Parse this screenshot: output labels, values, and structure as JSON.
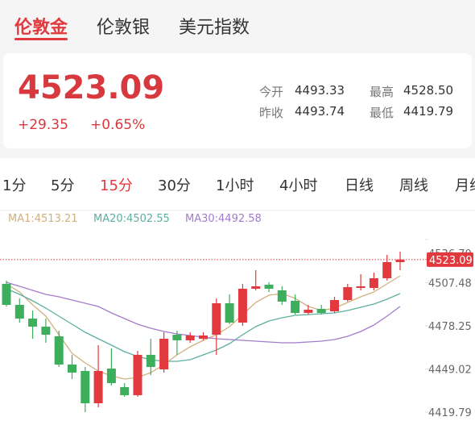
{
  "tabs": [
    "伦敦金",
    "伦敦银",
    "美元指数"
  ],
  "quote": {
    "price": "4523.09",
    "change": "+29.35",
    "change_pct": "+0.65%",
    "stats": [
      {
        "label": "今开",
        "value": "4493.33"
      },
      {
        "label": "最高",
        "value": "4528.50"
      },
      {
        "label": "昨收",
        "value": "4493.74"
      },
      {
        "label": "最低",
        "value": "4419.79"
      }
    ]
  },
  "periods": [
    "1分",
    "5分",
    "15分",
    "30分",
    "1小时",
    "4小时",
    "日线",
    "周线",
    "月线"
  ],
  "chart_data": {
    "type": "candlestick",
    "up_color": "#e2393f",
    "down_color": "#3daf5c",
    "ma_legend": [
      {
        "text": "MA1:4513.21",
        "color": "#d2b07e"
      },
      {
        "text": "MA20:4502.55",
        "color": "#5cb0a0"
      },
      {
        "text": "MA30:4492.58",
        "color": "#a47ccb"
      }
    ],
    "open": [
      4506.65,
      4492.45,
      4483.16,
      4477.7,
      4471.15,
      4452.02,
      4447.65,
      4425.8,
      4449.29,
      4436.73,
      4431.27,
      4458.58,
      4448.74,
      4472.24,
      4468.42,
      4469.51,
      4472.24,
      4493.54,
      4480.43,
      4503.38,
      4506.11,
      4502.28,
      4495.18,
      4486.99,
      4489.72,
      4488.08,
      4495.73,
      4503.92,
      4503.92,
      4510.48,
      4521.4
    ],
    "high": [
      4508.84,
      4496.82,
      4488.63,
      4483.16,
      4474.97,
      4458.58,
      4450.38,
      4465.13,
      4462.95,
      4439.46,
      4461.31,
      4469.51,
      4473.88,
      4474.97,
      4473.88,
      4473.88,
      4496.82,
      4499.55,
      4506.65,
      4515.94,
      4507.74,
      4505.01,
      4499.55,
      4492.45,
      4492.45,
      4497.91,
      4506.65,
      4513.21,
      4514.3,
      4526.32,
      4528.5
    ],
    "low": [
      4491.36,
      4480.43,
      4469.51,
      4466.78,
      4450.38,
      4442.19,
      4419.79,
      4423.07,
      4437.82,
      4430.17,
      4430.17,
      4444.92,
      4446.56,
      4458.58,
      4466.78,
      4468.42,
      4458.58,
      4479.34,
      4478.25,
      4502.28,
      4501.19,
      4492.45,
      4485.89,
      4485.89,
      4485.89,
      4486.99,
      4494.64,
      4502.28,
      4502.28,
      4508.84,
      4515.94
    ],
    "close": [
      4492.45,
      4483.16,
      4477.7,
      4472.24,
      4452.02,
      4446.56,
      4425.8,
      4447.65,
      4439.46,
      4431.27,
      4458.58,
      4450.38,
      4469.51,
      4468.42,
      4471.69,
      4471.69,
      4493.54,
      4480.43,
      4503.38,
      4505.01,
      4503.38,
      4494.64,
      4486.99,
      4489.17,
      4486.99,
      4495.73,
      4504.47,
      4505.01,
      4510.48,
      4521.4,
      4523.09
    ],
    "ma": [
      {
        "values": [
          4506.65,
          4501.19,
          4492.45,
          4484.8,
          4472.24,
          4459.67,
          4453.12,
          4447.65,
          4444.38,
          4442.19,
          4443.28,
          4446.56,
          4452.02,
          4458.58,
          4464.04,
          4468.42,
          4472.24,
          4477.7,
          4485.89,
          4494.09,
          4499.01,
          4500.1,
          4496.82,
          4491.36,
          4488.63,
          4490.26,
          4494.09,
          4497.91,
          4501.19,
          4506.65,
          4512.12
        ]
      },
      {
        "values": [
          4503.38,
          4499.55,
          4495.18,
          4490.26,
          4484.8,
          4479.34,
          4473.88,
          4469.51,
          4465.13,
          4460.76,
          4457.49,
          4455.3,
          4454.21,
          4454.21,
          4455.3,
          4458.58,
          4461.86,
          4466.23,
          4472.24,
          4477.7,
          4481.52,
          4483.71,
          4485.35,
          4485.89,
          4486.44,
          4486.99,
          4488.63,
          4490.81,
          4493.0,
          4496.27,
          4500.1
        ]
      },
      {
        "values": [
          4507.75,
          4505.01,
          4502.28,
          4499.55,
          4497.91,
          4495.73,
          4493.54,
          4491.36,
          4486.99,
          4483.16,
          4479.34,
          4476.61,
          4474.42,
          4472.78,
          4471.69,
          4470.6,
          4469.51,
          4468.96,
          4468.42,
          4467.87,
          4467.32,
          4466.78,
          4466.78,
          4467.32,
          4467.87,
          4468.96,
          4471.15,
          4474.42,
          4478.79,
          4484.8,
          4491.36
        ]
      }
    ],
    "price_line": 4523.09,
    "ylim": [
      4419.79,
      4536.7
    ],
    "yticks": [
      {
        "value": 4536.7,
        "label": "4536.70"
      },
      4507.48,
      4478.25,
      4449.02,
      4419.79
    ]
  }
}
